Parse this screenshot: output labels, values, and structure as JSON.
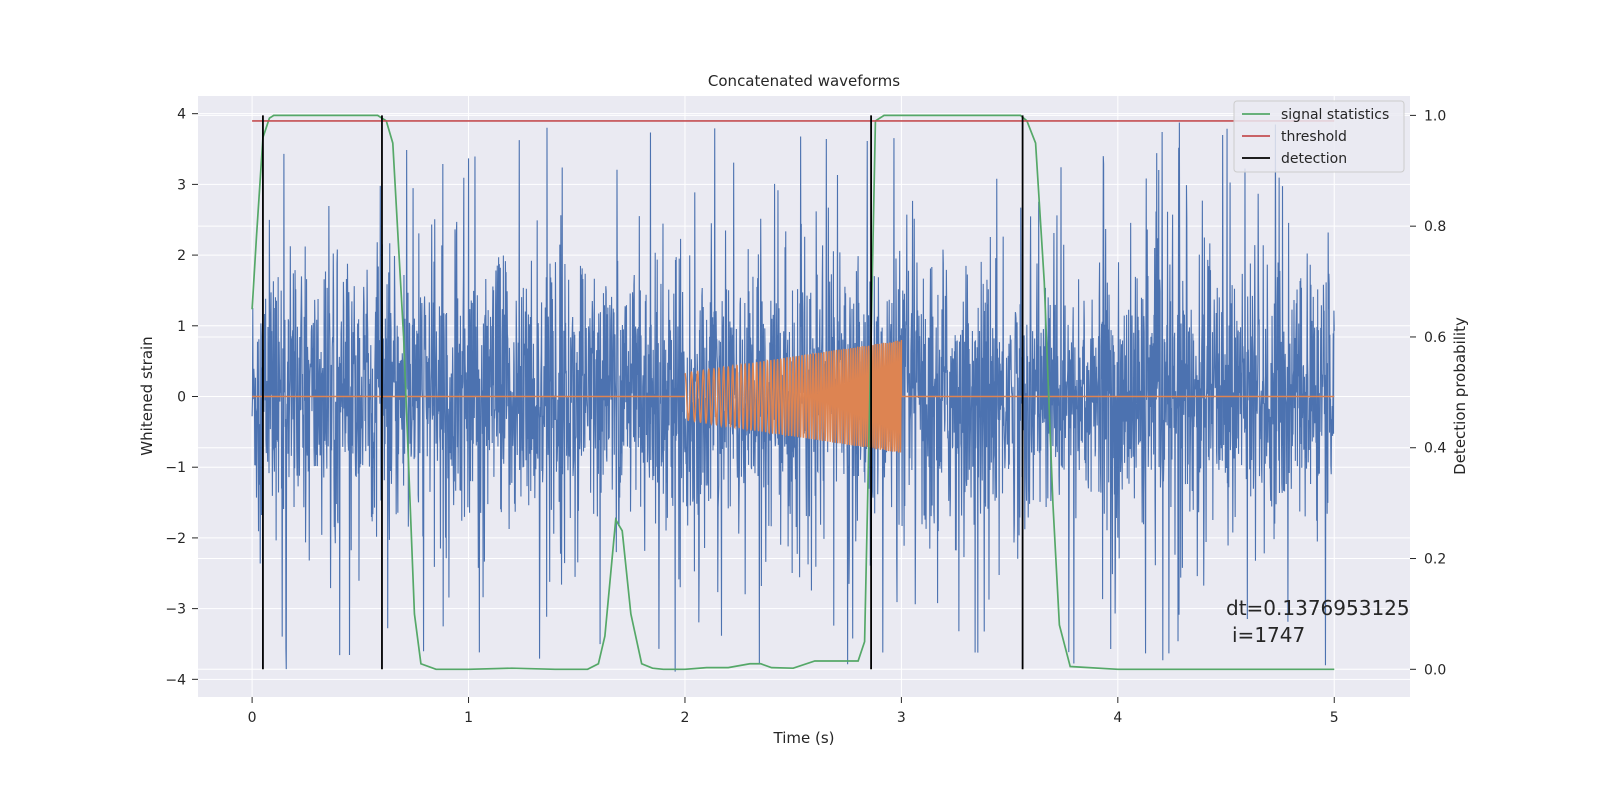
{
  "chart_data": {
    "type": "line",
    "title": "Concatenated waveforms",
    "xlabel": "Time (s)",
    "ylabel_left": "Whitened strain",
    "ylabel_right": "Detection probability",
    "xlim": [
      -0.25,
      5.35
    ],
    "ylim_left": [
      -4.25,
      4.25
    ],
    "ylim_right": [
      -0.05,
      1.035
    ],
    "x_ticks": [
      "0",
      "1",
      "2",
      "3",
      "4",
      "5"
    ],
    "x_tick_values": [
      0,
      1,
      2,
      3,
      4,
      5
    ],
    "y_left_ticks": [
      "4",
      "3",
      "2",
      "1",
      "0",
      "−1",
      "−2",
      "−3",
      "−4"
    ],
    "y_left_tick_values": [
      4,
      3,
      2,
      1,
      0,
      -1,
      -2,
      -3,
      -4
    ],
    "y_right_ticks": [
      "1.0",
      "0.8",
      "0.6",
      "0.4",
      "0.2",
      "0.0"
    ],
    "y_right_tick_values": [
      1.0,
      0.8,
      0.6,
      0.4,
      0.2,
      0.0
    ],
    "grid": true,
    "legend_position": "top-right",
    "noise_series": {
      "color": "#4c72b0",
      "x_range": [
        0,
        5
      ],
      "axis": "left",
      "typical_amplitude": 1.4,
      "spike_amplitude_max": 3.9
    },
    "injected_signal": {
      "color": "#dd8452",
      "axis": "left",
      "segments": [
        {
          "x_start": 0,
          "x_end": 2,
          "value": 0
        },
        {
          "x_start": 2,
          "x_end": 3,
          "amplitude_start": 0.33,
          "amplitude_end": 0.8,
          "type": "chirp"
        },
        {
          "x_start": 3,
          "x_end": 5,
          "value": 0
        }
      ]
    },
    "series": [
      {
        "name": "signal statistics",
        "color": "#55a868",
        "axis": "right",
        "x": [
          0,
          0.02,
          0.05,
          0.08,
          0.1,
          0.15,
          0.2,
          0.3,
          0.4,
          0.5,
          0.58,
          0.62,
          0.65,
          0.7,
          0.72,
          0.75,
          0.78,
          0.85,
          1.0,
          1.2,
          1.4,
          1.55,
          1.6,
          1.63,
          1.68,
          1.71,
          1.75,
          1.8,
          1.85,
          1.9,
          2.0,
          2.1,
          2.2,
          2.3,
          2.35,
          2.4,
          2.5,
          2.6,
          2.7,
          2.8,
          2.83,
          2.86,
          2.88,
          2.92,
          3.0,
          3.2,
          3.4,
          3.55,
          3.58,
          3.62,
          3.66,
          3.7,
          3.73,
          3.78,
          4.0,
          4.5,
          5.0
        ],
        "y": [
          0.65,
          0.78,
          0.96,
          0.995,
          1.0,
          1.0,
          1.0,
          1.0,
          1.0,
          1.0,
          1.0,
          0.99,
          0.95,
          0.6,
          0.4,
          0.1,
          0.01,
          0.0,
          0.0,
          0.002,
          0.0,
          0.0,
          0.01,
          0.06,
          0.27,
          0.25,
          0.1,
          0.01,
          0.002,
          0.0,
          0.0,
          0.003,
          0.003,
          0.01,
          0.01,
          0.003,
          0.002,
          0.015,
          0.015,
          0.015,
          0.05,
          0.6,
          0.99,
          1.0,
          1.0,
          1.0,
          1.0,
          1.0,
          0.99,
          0.95,
          0.7,
          0.3,
          0.08,
          0.005,
          0.0,
          0.0,
          0.0
        ]
      },
      {
        "name": "threshold",
        "color": "#c44e52",
        "axis": "right",
        "x": [
          0,
          5
        ],
        "y": [
          0.99,
          0.99
        ]
      },
      {
        "name": "detection",
        "color": "#000000",
        "axis": "right",
        "type": "vlines",
        "x": [
          0.05,
          0.6,
          2.86,
          3.56
        ],
        "y_range": [
          0.0,
          1.0
        ]
      }
    ],
    "annotation": {
      "dt_text": "dt=0.1376953125",
      "i_text": "i=1747"
    }
  }
}
